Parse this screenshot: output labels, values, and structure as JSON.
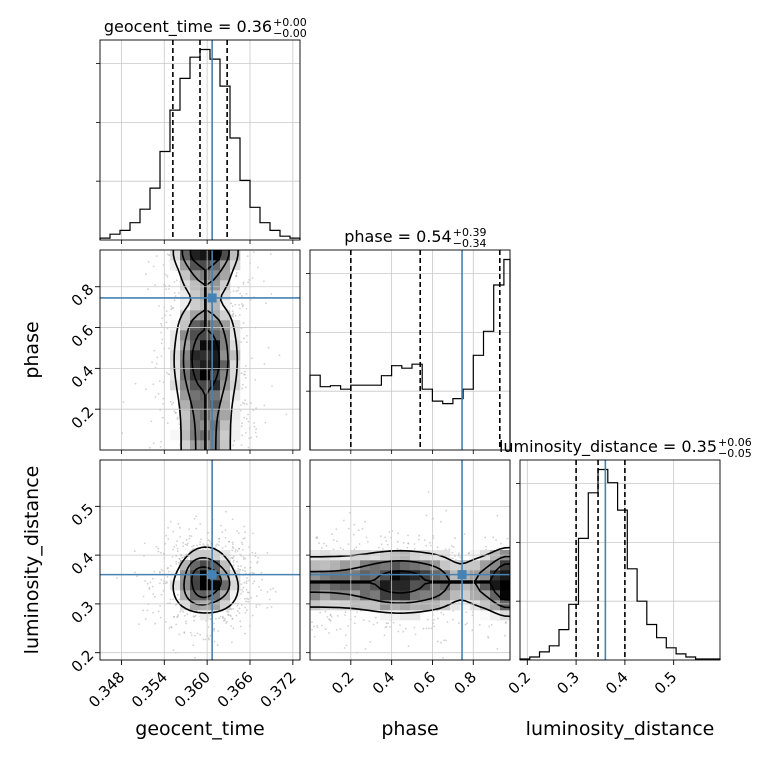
{
  "chart_data": {
    "type": "corner",
    "parameters": [
      "geocent_time",
      "phase",
      "luminosity_distance"
    ],
    "truths": [
      0.3607,
      0.745,
      0.36
    ],
    "colors": {
      "truth": "#4682b4",
      "hist": "#000000",
      "grid": "#c8c8c8",
      "points": "#999999"
    },
    "titles": [
      {
        "text": "geocent_time = 0.36",
        "plus": "+0.00",
        "minus": "−0.00"
      },
      {
        "text": "phase = 0.54",
        "plus": "+0.39",
        "minus": "−0.34"
      },
      {
        "text": "luminosity_distance = 0.35",
        "plus": "+0.06",
        "minus": "−0.05"
      }
    ],
    "axes": {
      "geocent_time": {
        "range": [
          0.345,
          0.373
        ],
        "ticks": [
          0.348,
          0.354,
          0.36,
          0.366,
          0.372
        ],
        "tick_labels": [
          "0.348",
          "0.354",
          "0.360",
          "0.366",
          "0.372"
        ]
      },
      "phase": {
        "range": [
          0.0,
          0.98
        ],
        "ticks": [
          0.2,
          0.4,
          0.6,
          0.8
        ],
        "tick_labels": [
          "0.2",
          "0.4",
          "0.6",
          "0.8"
        ]
      },
      "luminosity_distance": {
        "range": [
          0.185,
          0.595
        ],
        "ticks": [
          0.2,
          0.3,
          0.4,
          0.5
        ],
        "tick_labels": [
          "0.2",
          "0.3",
          "0.4",
          "0.5"
        ]
      }
    },
    "diagonal": [
      {
        "param": "geocent_time",
        "bins": [
          0.345,
          0.3464,
          0.3478,
          0.3492,
          0.3506,
          0.352,
          0.3534,
          0.3548,
          0.3562,
          0.3576,
          0.359,
          0.3604,
          0.3618,
          0.3632,
          0.3646,
          0.366,
          0.3674,
          0.3688,
          0.3702,
          0.3716,
          0.373
        ],
        "counts": [
          2,
          6,
          10,
          18,
          32,
          54,
          92,
          135,
          168,
          190,
          198,
          188,
          160,
          106,
          62,
          34,
          18,
          10,
          4,
          2
        ],
        "quantiles": [
          0.3552,
          0.359,
          0.3628
        ]
      },
      {
        "param": "phase",
        "bins": [
          0.0,
          0.05,
          0.1,
          0.15,
          0.2,
          0.25,
          0.3,
          0.35,
          0.4,
          0.45,
          0.5,
          0.55,
          0.6,
          0.65,
          0.7,
          0.75,
          0.8,
          0.85,
          0.9,
          0.95,
          0.98
        ],
        "counts": [
          150,
          127,
          129,
          122,
          130,
          130,
          130,
          149,
          169,
          164,
          172,
          122,
          98,
          93,
          103,
          122,
          190,
          238,
          331,
          382
        ],
        "quantiles": [
          0.2,
          0.54,
          0.93
        ]
      },
      {
        "param": "luminosity_distance",
        "bins": [
          0.185,
          0.205,
          0.225,
          0.245,
          0.265,
          0.285,
          0.305,
          0.325,
          0.345,
          0.365,
          0.385,
          0.405,
          0.425,
          0.445,
          0.465,
          0.485,
          0.505,
          0.525,
          0.545,
          0.565,
          0.585,
          0.595
        ],
        "counts": [
          1,
          3,
          8,
          14,
          30,
          55,
          120,
          165,
          188,
          175,
          148,
          90,
          58,
          35,
          22,
          12,
          6,
          3,
          1,
          1,
          1
        ],
        "quantiles": [
          0.3,
          0.345,
          0.4
        ]
      }
    ],
    "pairs": [
      {
        "x": "geocent_time",
        "y": "phase",
        "center": [
          0.3598,
          0.5
        ],
        "spread": [
          0.003,
          0.29
        ],
        "shape": "band"
      },
      {
        "x": "geocent_time",
        "y": "luminosity_distance",
        "center": [
          0.3598,
          0.345
        ],
        "spread": [
          0.003,
          0.045
        ],
        "shape": "blob"
      },
      {
        "x": "phase",
        "y": "luminosity_distance",
        "center": [
          0.5,
          0.345
        ],
        "spread": [
          0.29,
          0.045
        ],
        "shape": "band"
      }
    ]
  }
}
